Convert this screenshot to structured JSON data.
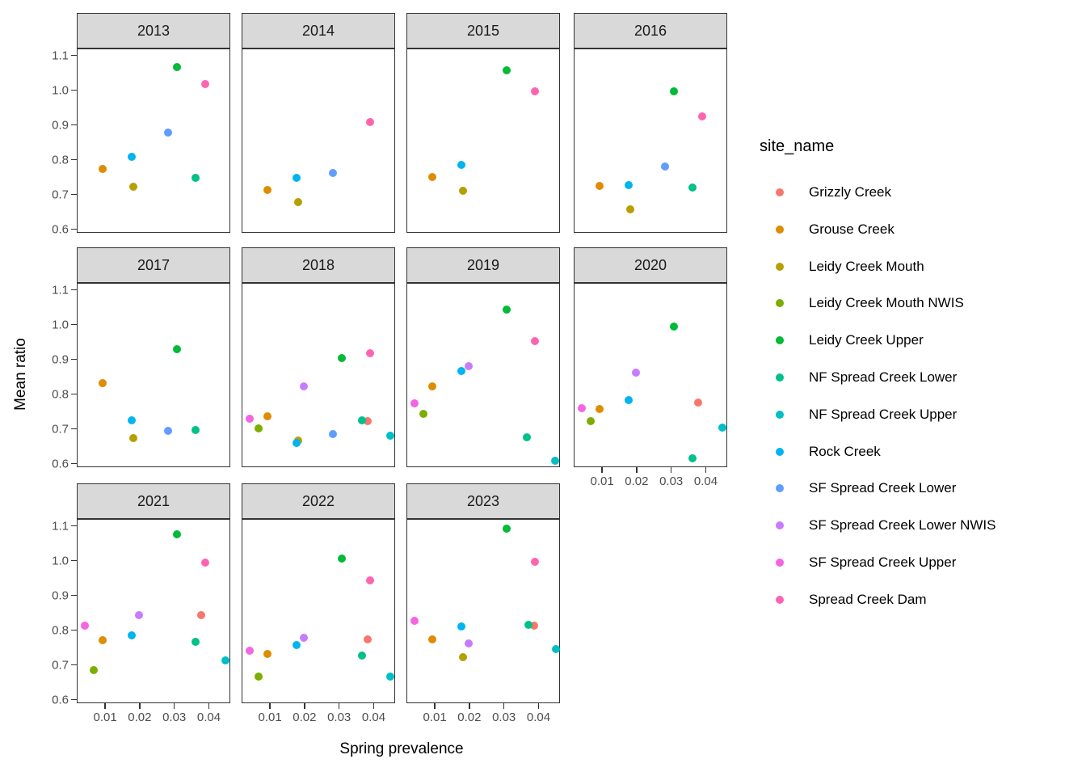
{
  "chart_data": {
    "type": "scatter",
    "title": "",
    "xlabel": "Spring prevalence",
    "ylabel": "Mean ratio",
    "xlim": [
      0.0018,
      0.0462
    ],
    "ylim": [
      0.59,
      1.12
    ],
    "grid": false,
    "x_ticks": [
      {
        "value": 0.01,
        "label": "0.01"
      },
      {
        "value": 0.02,
        "label": "0.02"
      },
      {
        "value": 0.03,
        "label": "0.03"
      },
      {
        "value": 0.04,
        "label": "0.04"
      }
    ],
    "y_ticks": [
      {
        "value": 1.1,
        "label": "1.1"
      },
      {
        "value": 1.0,
        "label": "1.0"
      },
      {
        "value": 0.9,
        "label": "0.9"
      },
      {
        "value": 0.8,
        "label": "0.8"
      },
      {
        "value": 0.7,
        "label": "0.7"
      },
      {
        "value": 0.6,
        "label": "0.6"
      }
    ],
    "legend": {
      "title": "site_name",
      "position": "right"
    },
    "sites": [
      {
        "name": "Grizzly Creek",
        "color": "#F8766D"
      },
      {
        "name": "Grouse Creek",
        "color": "#DE8C00"
      },
      {
        "name": "Leidy Creek Mouth",
        "color": "#B79F00"
      },
      {
        "name": "Leidy Creek Mouth NWIS",
        "color": "#7CAE00"
      },
      {
        "name": "Leidy Creek Upper",
        "color": "#00BA38"
      },
      {
        "name": "NF Spread Creek Lower",
        "color": "#00C08B"
      },
      {
        "name": "NF Spread Creek Upper",
        "color": "#00BFC4"
      },
      {
        "name": "Rock Creek",
        "color": "#00B4F0"
      },
      {
        "name": "SF Spread Creek Lower",
        "color": "#619CFF"
      },
      {
        "name": "SF Spread Creek Lower NWIS",
        "color": "#C77CFF"
      },
      {
        "name": "SF Spread Creek Upper",
        "color": "#F564E3"
      },
      {
        "name": "Spread Creek Dam",
        "color": "#FF64B0"
      }
    ],
    "facets": [
      {
        "year": "2013",
        "points": [
          {
            "site": "Grouse Creek",
            "x": 0.009,
            "y": 0.777
          },
          {
            "site": "Leidy Creek Mouth",
            "x": 0.018,
            "y": 0.725
          },
          {
            "site": "Leidy Creek Upper",
            "x": 0.0305,
            "y": 1.07
          },
          {
            "site": "NF Spread Creek Lower",
            "x": 0.036,
            "y": 0.75
          },
          {
            "site": "Rock Creek",
            "x": 0.0175,
            "y": 0.81
          },
          {
            "site": "SF Spread Creek Lower",
            "x": 0.028,
            "y": 0.88
          },
          {
            "site": "Spread Creek Dam",
            "x": 0.0388,
            "y": 1.02
          }
        ]
      },
      {
        "year": "2014",
        "points": [
          {
            "site": "Grouse Creek",
            "x": 0.009,
            "y": 0.715
          },
          {
            "site": "Leidy Creek Mouth",
            "x": 0.018,
            "y": 0.68
          },
          {
            "site": "Rock Creek",
            "x": 0.0175,
            "y": 0.75
          },
          {
            "site": "SF Spread Creek Lower",
            "x": 0.028,
            "y": 0.765
          },
          {
            "site": "Spread Creek Dam",
            "x": 0.0388,
            "y": 0.91
          }
        ]
      },
      {
        "year": "2015",
        "points": [
          {
            "site": "Grouse Creek",
            "x": 0.009,
            "y": 0.752
          },
          {
            "site": "Leidy Creek Mouth",
            "x": 0.018,
            "y": 0.713
          },
          {
            "site": "Leidy Creek Upper",
            "x": 0.0305,
            "y": 1.06
          },
          {
            "site": "Rock Creek",
            "x": 0.0175,
            "y": 0.787
          },
          {
            "site": "Spread Creek Dam",
            "x": 0.0388,
            "y": 1.0
          }
        ]
      },
      {
        "year": "2016",
        "points": [
          {
            "site": "Grouse Creek",
            "x": 0.009,
            "y": 0.728
          },
          {
            "site": "Leidy Creek Mouth",
            "x": 0.018,
            "y": 0.66
          },
          {
            "site": "Leidy Creek Upper",
            "x": 0.0305,
            "y": 1.0
          },
          {
            "site": "NF Spread Creek Lower",
            "x": 0.036,
            "y": 0.722
          },
          {
            "site": "Rock Creek",
            "x": 0.0175,
            "y": 0.73
          },
          {
            "site": "SF Spread Creek Lower",
            "x": 0.028,
            "y": 0.784
          },
          {
            "site": "Spread Creek Dam",
            "x": 0.0388,
            "y": 0.928
          }
        ]
      },
      {
        "year": "2017",
        "points": [
          {
            "site": "Grouse Creek",
            "x": 0.009,
            "y": 0.835
          },
          {
            "site": "Leidy Creek Mouth",
            "x": 0.018,
            "y": 0.677
          },
          {
            "site": "Leidy Creek Upper",
            "x": 0.0305,
            "y": 0.932
          },
          {
            "site": "NF Spread Creek Lower",
            "x": 0.036,
            "y": 0.7
          },
          {
            "site": "Rock Creek",
            "x": 0.0175,
            "y": 0.728
          },
          {
            "site": "SF Spread Creek Lower",
            "x": 0.028,
            "y": 0.698
          }
        ]
      },
      {
        "year": "2018",
        "points": [
          {
            "site": "Grizzly Creek",
            "x": 0.038,
            "y": 0.724
          },
          {
            "site": "Grouse Creek",
            "x": 0.009,
            "y": 0.738
          },
          {
            "site": "Leidy Creek Mouth",
            "x": 0.018,
            "y": 0.67
          },
          {
            "site": "Leidy Creek Mouth NWIS",
            "x": 0.0065,
            "y": 0.703
          },
          {
            "site": "Leidy Creek Upper",
            "x": 0.0305,
            "y": 0.907
          },
          {
            "site": "NF Spread Creek Lower",
            "x": 0.0365,
            "y": 0.728
          },
          {
            "site": "NF Spread Creek Upper",
            "x": 0.0445,
            "y": 0.683
          },
          {
            "site": "Rock Creek",
            "x": 0.0175,
            "y": 0.662
          },
          {
            "site": "SF Spread Creek Lower",
            "x": 0.028,
            "y": 0.687
          },
          {
            "site": "SF Spread Creek Lower NWIS",
            "x": 0.0195,
            "y": 0.824
          },
          {
            "site": "SF Spread Creek Upper",
            "x": 0.004,
            "y": 0.731
          },
          {
            "site": "Spread Creek Dam",
            "x": 0.0388,
            "y": 0.92
          }
        ]
      },
      {
        "year": "2019",
        "points": [
          {
            "site": "Grouse Creek",
            "x": 0.009,
            "y": 0.824
          },
          {
            "site": "Leidy Creek Mouth NWIS",
            "x": 0.0065,
            "y": 0.746
          },
          {
            "site": "Leidy Creek Upper",
            "x": 0.0305,
            "y": 1.046
          },
          {
            "site": "NF Spread Creek Lower",
            "x": 0.0365,
            "y": 0.679
          },
          {
            "site": "NF Spread Creek Upper",
            "x": 0.0445,
            "y": 0.61
          },
          {
            "site": "Rock Creek",
            "x": 0.0175,
            "y": 0.868
          },
          {
            "site": "SF Spread Creek Lower NWIS",
            "x": 0.0195,
            "y": 0.884
          },
          {
            "site": "SF Spread Creek Upper",
            "x": 0.004,
            "y": 0.775
          },
          {
            "site": "Spread Creek Dam",
            "x": 0.0388,
            "y": 0.955
          }
        ]
      },
      {
        "year": "2020",
        "points": [
          {
            "site": "Grizzly Creek",
            "x": 0.0375,
            "y": 0.779
          },
          {
            "site": "Grouse Creek",
            "x": 0.009,
            "y": 0.76
          },
          {
            "site": "Leidy Creek Mouth NWIS",
            "x": 0.0065,
            "y": 0.724
          },
          {
            "site": "Leidy Creek Upper",
            "x": 0.0305,
            "y": 0.996
          },
          {
            "site": "NF Spread Creek Lower",
            "x": 0.036,
            "y": 0.619
          },
          {
            "site": "NF Spread Creek Upper",
            "x": 0.0445,
            "y": 0.706
          },
          {
            "site": "Rock Creek",
            "x": 0.0175,
            "y": 0.786
          },
          {
            "site": "SF Spread Creek Lower NWIS",
            "x": 0.0195,
            "y": 0.864
          },
          {
            "site": "SF Spread Creek Upper",
            "x": 0.004,
            "y": 0.761
          }
        ]
      },
      {
        "year": "2021",
        "points": [
          {
            "site": "Grizzly Creek",
            "x": 0.0375,
            "y": 0.846
          },
          {
            "site": "Grouse Creek",
            "x": 0.009,
            "y": 0.774
          },
          {
            "site": "Leidy Creek Mouth NWIS",
            "x": 0.0065,
            "y": 0.688
          },
          {
            "site": "Leidy Creek Upper",
            "x": 0.0305,
            "y": 1.078
          },
          {
            "site": "NF Spread Creek Lower",
            "x": 0.036,
            "y": 0.769
          },
          {
            "site": "NF Spread Creek Upper",
            "x": 0.0445,
            "y": 0.716
          },
          {
            "site": "Rock Creek",
            "x": 0.0175,
            "y": 0.788
          },
          {
            "site": "SF Spread Creek Lower NWIS",
            "x": 0.0195,
            "y": 0.846
          },
          {
            "site": "SF Spread Creek Upper",
            "x": 0.004,
            "y": 0.816
          },
          {
            "site": "Spread Creek Dam",
            "x": 0.0388,
            "y": 0.997
          }
        ]
      },
      {
        "year": "2022",
        "points": [
          {
            "site": "Grizzly Creek",
            "x": 0.038,
            "y": 0.776
          },
          {
            "site": "Grouse Creek",
            "x": 0.009,
            "y": 0.734
          },
          {
            "site": "Leidy Creek Mouth NWIS",
            "x": 0.0065,
            "y": 0.668
          },
          {
            "site": "Leidy Creek Upper",
            "x": 0.0305,
            "y": 1.008
          },
          {
            "site": "NF Spread Creek Lower",
            "x": 0.0365,
            "y": 0.73
          },
          {
            "site": "NF Spread Creek Upper",
            "x": 0.0445,
            "y": 0.669
          },
          {
            "site": "Rock Creek",
            "x": 0.0175,
            "y": 0.76
          },
          {
            "site": "SF Spread Creek Lower NWIS",
            "x": 0.0195,
            "y": 0.781
          },
          {
            "site": "SF Spread Creek Upper",
            "x": 0.004,
            "y": 0.744
          },
          {
            "site": "Spread Creek Dam",
            "x": 0.0388,
            "y": 0.946
          }
        ]
      },
      {
        "year": "2023",
        "points": [
          {
            "site": "Grizzly Creek",
            "x": 0.0385,
            "y": 0.815
          },
          {
            "site": "Grouse Creek",
            "x": 0.009,
            "y": 0.775
          },
          {
            "site": "Leidy Creek Mouth",
            "x": 0.018,
            "y": 0.724
          },
          {
            "site": "Leidy Creek Upper",
            "x": 0.0305,
            "y": 1.095
          },
          {
            "site": "NF Spread Creek Lower",
            "x": 0.0368,
            "y": 0.818
          },
          {
            "site": "NF Spread Creek Upper",
            "x": 0.0448,
            "y": 0.748
          },
          {
            "site": "Rock Creek",
            "x": 0.0175,
            "y": 0.814
          },
          {
            "site": "SF Spread Creek Lower NWIS",
            "x": 0.0195,
            "y": 0.764
          },
          {
            "site": "SF Spread Creek Upper",
            "x": 0.004,
            "y": 0.83
          },
          {
            "site": "Spread Creek Dam",
            "x": 0.0388,
            "y": 1.0
          }
        ]
      }
    ]
  }
}
